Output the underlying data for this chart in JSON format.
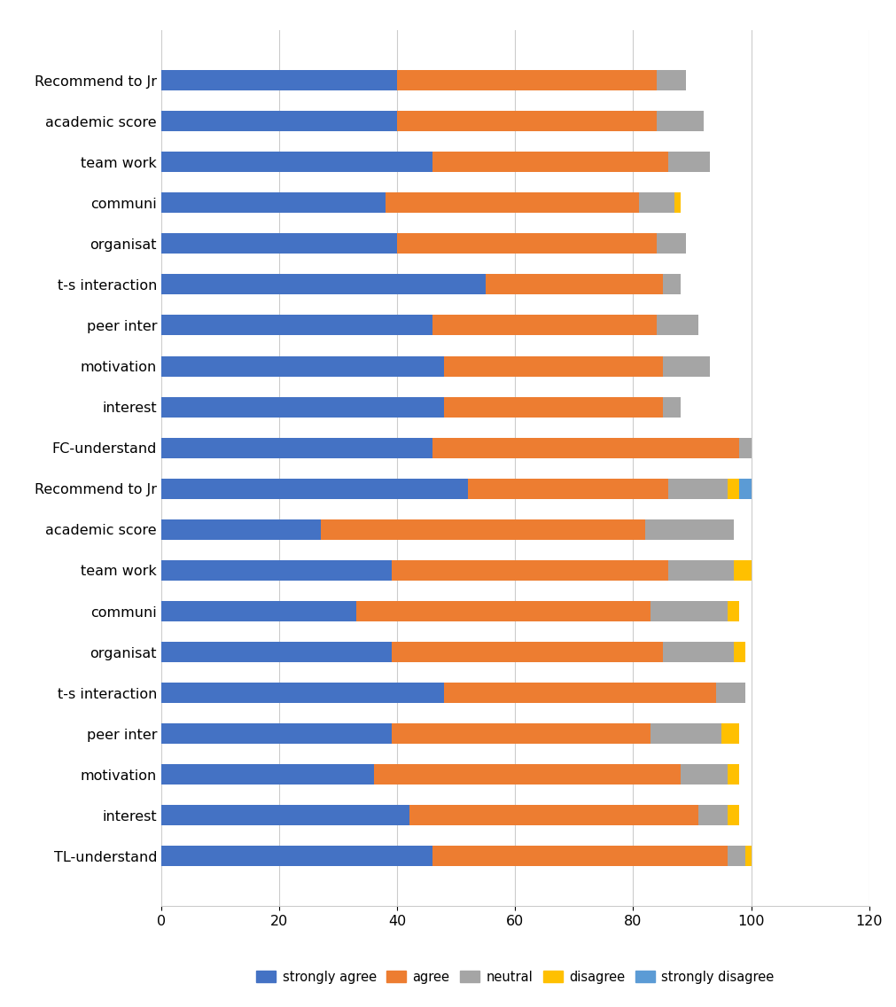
{
  "categories": [
    "Recommend to Jr",
    "academic score",
    "team work",
    "communi",
    "organisat",
    "t-s interaction",
    "peer inter",
    "motivation",
    "interest",
    "FC-understand",
    "Recommend to Jr",
    "academic score",
    "team work",
    "communi",
    "organisat",
    "t-s interaction",
    "peer inter",
    "motivation",
    "interest",
    "TL-understand"
  ],
  "strongly_agree": [
    40,
    40,
    46,
    38,
    40,
    55,
    46,
    48,
    48,
    46,
    52,
    27,
    39,
    33,
    39,
    48,
    39,
    36,
    42,
    46
  ],
  "agree": [
    44,
    44,
    40,
    43,
    44,
    30,
    38,
    37,
    37,
    52,
    34,
    55,
    47,
    50,
    46,
    46,
    44,
    52,
    49,
    50
  ],
  "neutral": [
    5,
    8,
    7,
    6,
    5,
    3,
    7,
    8,
    3,
    2,
    10,
    15,
    11,
    13,
    12,
    5,
    12,
    8,
    5,
    3
  ],
  "disagree": [
    0,
    0,
    0,
    1,
    0,
    0,
    0,
    0,
    0,
    0,
    2,
    0,
    3,
    2,
    2,
    0,
    3,
    2,
    2,
    1
  ],
  "strongly_disagree": [
    0,
    0,
    0,
    0,
    0,
    0,
    0,
    0,
    0,
    0,
    2,
    0,
    0,
    0,
    0,
    0,
    0,
    0,
    0,
    0
  ],
  "colors": {
    "strongly_agree": "#4472C4",
    "agree": "#ED7D31",
    "neutral": "#A5A5A5",
    "disagree": "#FFC000",
    "strongly_disagree": "#5B9BD5"
  },
  "xlim": [
    0,
    120
  ],
  "xticks": [
    0,
    20,
    40,
    60,
    80,
    100,
    120
  ],
  "figsize": [
    10.11,
    11.36
  ],
  "dpi": 100
}
